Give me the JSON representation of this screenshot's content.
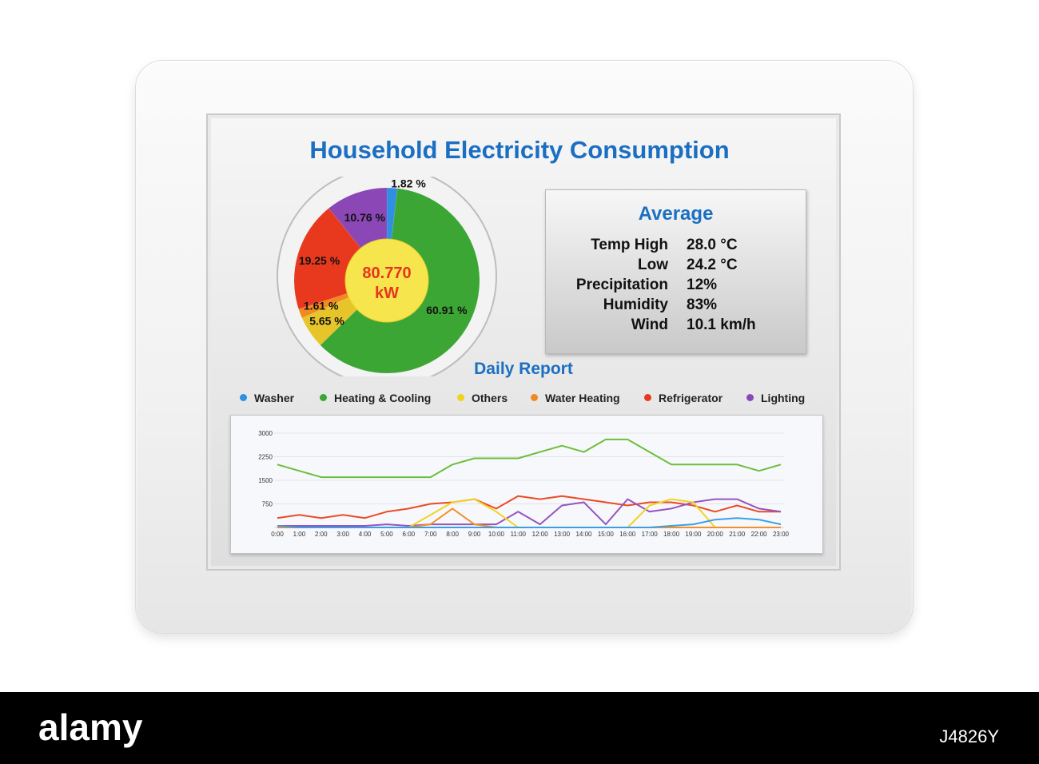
{
  "title": "Household Electricity Consumption",
  "center": {
    "value": "80.770",
    "unit": "kW"
  },
  "average": {
    "title": "Average",
    "rows": [
      {
        "label": "Temp High",
        "value": "28.0 °C"
      },
      {
        "label": "Low",
        "value": "24.2 °C"
      },
      {
        "label": "Precipitation",
        "value": "12%"
      },
      {
        "label": "Humidity",
        "value": "83%"
      },
      {
        "label": "Wind",
        "value": "10.1 km/h"
      }
    ]
  },
  "report_title": "Daily Report",
  "legend": [
    {
      "name": "Washer",
      "color": "#2f8fe0"
    },
    {
      "name": "Heating & Cooling",
      "color": "#3ca635"
    },
    {
      "name": "Others",
      "color": "#f0d31d"
    },
    {
      "name": "Water Heating",
      "color": "#f08a1e"
    },
    {
      "name": "Refrigerator",
      "color": "#e8391f"
    },
    {
      "name": "Lighting",
      "color": "#8a47b5"
    }
  ],
  "watermark": "alamy",
  "image_id": "J4826Y",
  "chart_data": [
    {
      "type": "pie",
      "values_percent": [
        1.82,
        60.91,
        5.65,
        1.61,
        19.25,
        10.76
      ],
      "labels": [
        "1.82 %",
        "60.91 %",
        "5.65 %",
        "1.61 %",
        "19.25 %",
        "10.76 %"
      ],
      "colors": [
        "#2f8fe0",
        "#3ca635",
        "#e7c42a",
        "#f08a1e",
        "#e8391f",
        "#8a47b5"
      ]
    },
    {
      "type": "line",
      "x": [
        "0:00",
        "1:00",
        "2:00",
        "3:00",
        "4:00",
        "5:00",
        "6:00",
        "7:00",
        "8:00",
        "9:00",
        "10:00",
        "11:00",
        "12:00",
        "13:00",
        "14:00",
        "15:00",
        "16:00",
        "17:00",
        "18:00",
        "19:00",
        "20:00",
        "21:00",
        "22:00",
        "23:00"
      ],
      "y_ticks": [
        3000,
        2250,
        1500,
        750
      ],
      "ylim": [
        0,
        3000
      ],
      "grid": true,
      "series": [
        {
          "name": "Heating & Cooling",
          "color": "#6cbe3c",
          "values": [
            2000,
            1800,
            1600,
            1600,
            1600,
            1600,
            1600,
            1600,
            2000,
            2200,
            2200,
            2200,
            2400,
            2600,
            2400,
            2800,
            2800,
            2400,
            2000,
            2000,
            2000,
            2000,
            1800,
            2000
          ]
        },
        {
          "name": "Refrigerator",
          "color": "#ec4b25",
          "values": [
            300,
            400,
            300,
            400,
            300,
            500,
            600,
            750,
            800,
            900,
            600,
            1000,
            900,
            1000,
            900,
            800,
            700,
            800,
            800,
            700,
            500,
            700,
            500,
            500
          ]
        },
        {
          "name": "Lighting",
          "color": "#9455c0",
          "values": [
            50,
            50,
            50,
            50,
            50,
            100,
            50,
            100,
            100,
            100,
            100,
            500,
            100,
            700,
            800,
            100,
            900,
            500,
            600,
            800,
            900,
            900,
            600,
            500
          ]
        },
        {
          "name": "Others",
          "color": "#f2d324",
          "values": [
            0,
            0,
            0,
            0,
            0,
            0,
            0,
            400,
            800,
            900,
            500,
            0,
            0,
            0,
            0,
            0,
            0,
            700,
            900,
            800,
            0,
            0,
            0,
            0
          ]
        },
        {
          "name": "Water Heating",
          "color": "#f2912a",
          "values": [
            0,
            0,
            0,
            0,
            0,
            0,
            0,
            100,
            600,
            100,
            0,
            0,
            0,
            0,
            0,
            0,
            0,
            0,
            0,
            0,
            0,
            0,
            0,
            0
          ]
        },
        {
          "name": "Washer",
          "color": "#3f9ee2",
          "values": [
            50,
            0,
            0,
            0,
            0,
            0,
            0,
            0,
            0,
            0,
            0,
            0,
            0,
            0,
            0,
            0,
            0,
            0,
            50,
            100,
            250,
            300,
            250,
            100
          ]
        }
      ]
    }
  ]
}
